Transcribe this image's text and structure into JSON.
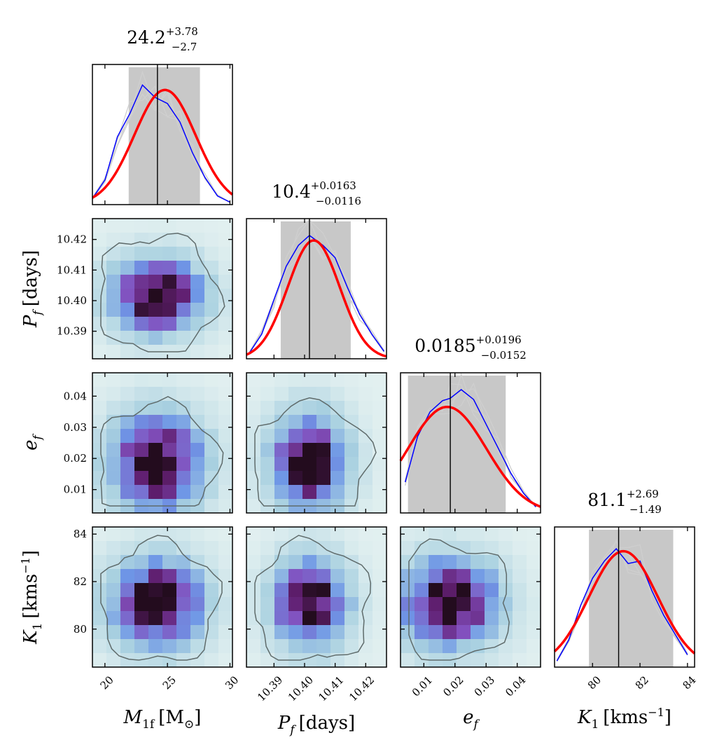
{
  "params": [
    {
      "key": "M1f",
      "xlabel": "M",
      "xlabel_sub": "1f",
      "xlabel_unit": "[M",
      "xlabel_unit_sub": "⊙",
      "xlabel_unit_end": "]"
    },
    {
      "key": "Pf",
      "label": "P",
      "label_sub": "f",
      "label_unit": "[days]"
    },
    {
      "key": "ef",
      "label": "e",
      "label_sub": "f"
    },
    {
      "key": "K1",
      "label": "K",
      "label_sub": "1",
      "label_unit": "[kms",
      "label_unit_sup": "−1",
      "label_unit_end": "]"
    }
  ],
  "titles": [
    {
      "base": "24.2",
      "plus": "+3.78",
      "minus": "−2.7"
    },
    {
      "base": "10.4",
      "plus": "+0.0163",
      "minus": "−0.0116"
    },
    {
      "base": "0.0185",
      "plus": "+0.0196",
      "minus": "−0.0152"
    },
    {
      "base": "81.1",
      "plus": "+2.69",
      "minus": "−1.49"
    }
  ],
  "ticks": {
    "M1f": [
      "20",
      "25",
      "30"
    ],
    "Pf": [
      "10.39",
      "10.40",
      "10.41",
      "10.42"
    ],
    "ef": [
      "0.01",
      "0.02",
      "0.03",
      "0.04"
    ],
    "K1": [
      "80",
      "82",
      "84"
    ]
  },
  "chart_data": {
    "type": "corner",
    "colors": {
      "hist_fill": "#c8c8c8",
      "kde": "#ff0000",
      "hist_line": "#0000ff",
      "median_line": "#000000",
      "contour": "#5f6b6b",
      "walkers": "#cfcfcf"
    },
    "ranges": {
      "M1f": [
        19.0,
        30.2
      ],
      "Pf": [
        10.381,
        10.4268
      ],
      "ef": [
        0.0025,
        0.0475
      ],
      "K1": [
        78.4,
        84.3
      ]
    },
    "medians": {
      "M1f": 24.2,
      "Pf": 10.4016,
      "ef": 0.0185,
      "K1": 81.1
    },
    "shaded": {
      "M1f": [
        21.9,
        27.6
      ],
      "Pf": [
        10.3922,
        10.4151
      ],
      "ef": [
        0.0049,
        0.0363
      ],
      "K1": [
        79.85,
        83.4
      ]
    },
    "marginals": {
      "M1f": {
        "x": [
          19.0,
          20.0,
          21.0,
          22.0,
          23.0,
          24.0,
          25.0,
          26.0,
          27.0,
          28.0,
          29.0,
          30.0
        ],
        "hist": [
          0.05,
          0.2,
          0.55,
          0.74,
          0.97,
          0.87,
          0.82,
          0.67,
          0.42,
          0.22,
          0.07,
          0.02
        ],
        "kde_mu": 24.8,
        "kde_sigma": 2.45,
        "kde_peak": 0.93
      },
      "Pf": {
        "x": [
          10.382,
          10.386,
          10.39,
          10.394,
          10.398,
          10.4016,
          10.406,
          10.41,
          10.414,
          10.418,
          10.422,
          10.426
        ],
        "hist": [
          0.05,
          0.2,
          0.48,
          0.75,
          0.92,
          1.0,
          0.92,
          0.82,
          0.58,
          0.36,
          0.2,
          0.06
        ],
        "kde_mu": 10.403,
        "kde_sigma": 0.0085,
        "kde_peak": 0.96
      },
      "ef": {
        "x": [
          0.004,
          0.008,
          0.012,
          0.016,
          0.0185,
          0.022,
          0.026,
          0.03,
          0.034,
          0.038,
          0.042,
          0.046
        ],
        "hist": [
          0.25,
          0.62,
          0.82,
          0.91,
          0.93,
          1.0,
          0.92,
          0.72,
          0.52,
          0.32,
          0.16,
          0.05
        ],
        "kde_mu": 0.0175,
        "kde_sigma": 0.0126,
        "kde_peak": 0.86
      },
      "K1": {
        "x": [
          78.5,
          79.0,
          79.5,
          80.0,
          80.5,
          81.0,
          81.5,
          82.0,
          82.5,
          83.0,
          83.5,
          84.0
        ],
        "hist": [
          0.05,
          0.22,
          0.5,
          0.72,
          0.86,
          0.96,
          0.84,
          0.86,
          0.62,
          0.42,
          0.26,
          0.1
        ],
        "kde_mu": 81.3,
        "kde_sigma": 1.45,
        "kde_peak": 0.94
      }
    }
  }
}
